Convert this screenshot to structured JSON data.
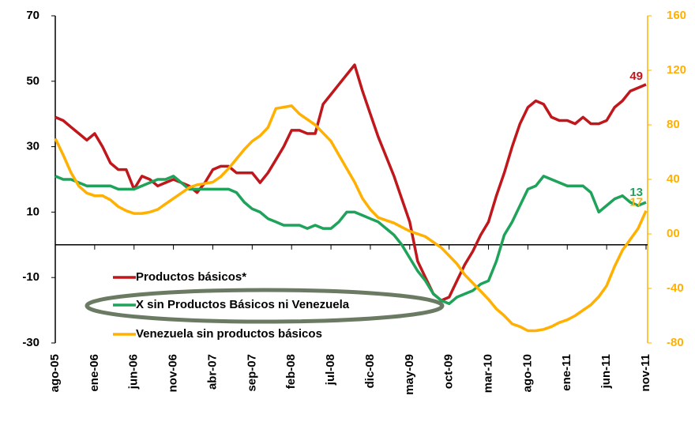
{
  "chart_data": {
    "type": "line",
    "categories": [
      "ago-05",
      null,
      null,
      null,
      null,
      "ene-06",
      null,
      null,
      null,
      null,
      "jun-06",
      null,
      null,
      null,
      null,
      "nov-06",
      null,
      null,
      null,
      null,
      "abr-07",
      null,
      null,
      null,
      null,
      "sep-07",
      null,
      null,
      null,
      null,
      "feb-08",
      null,
      null,
      null,
      null,
      "jul-08",
      null,
      null,
      null,
      null,
      "dic-08",
      null,
      null,
      null,
      null,
      "may-09",
      null,
      null,
      null,
      null,
      "oct-09",
      null,
      null,
      null,
      null,
      "mar-10",
      null,
      null,
      null,
      null,
      "ago-10",
      null,
      null,
      null,
      null,
      "ene-11",
      null,
      null,
      null,
      null,
      "jun-11",
      null,
      null,
      null,
      null,
      "nov-11"
    ],
    "ylim": [
      -30,
      70
    ],
    "yticks": [
      -30,
      -10,
      10,
      30,
      50,
      70
    ],
    "y2lim": [
      -80,
      160
    ],
    "y2ticks": [
      -80,
      -40,
      {
        "value": 0,
        "label": "00"
      },
      40,
      80,
      120,
      160
    ],
    "series": [
      {
        "name": "Productos básicos*",
        "color": "#c0171c",
        "values": [
          39,
          38,
          36,
          34,
          32,
          34,
          30,
          25,
          23,
          23,
          17,
          21,
          20,
          18,
          19,
          20,
          19,
          18,
          16,
          19,
          23,
          24,
          24,
          22,
          22,
          22,
          19,
          22,
          26,
          30,
          35,
          35,
          34,
          34,
          43,
          46,
          49,
          52,
          55,
          47,
          40,
          33,
          27,
          21,
          14,
          7,
          -5,
          -10,
          -15,
          -17,
          -16,
          -11,
          -6,
          -2,
          3,
          7,
          15,
          22,
          30,
          37,
          42,
          44,
          43,
          39,
          38,
          38,
          37,
          39,
          37,
          37,
          38,
          42,
          44,
          47,
          48,
          49
        ]
      },
      {
        "name": "X sin Productos Básicos ni Venezuela",
        "color": "#1fa35a",
        "values": [
          21,
          20,
          20,
          19,
          18,
          18,
          18,
          18,
          17,
          17,
          17,
          18,
          19,
          20,
          20,
          21,
          19,
          17,
          17,
          17,
          17,
          17,
          17,
          16,
          13,
          11,
          10,
          8,
          7,
          6,
          6,
          6,
          5,
          6,
          5,
          5,
          7,
          10,
          10,
          9,
          8,
          7,
          5,
          3,
          0,
          -4,
          -8,
          -11,
          -15,
          -17,
          -18,
          -16,
          -15,
          -14,
          -12,
          -11,
          -5,
          3,
          7,
          12,
          17,
          18,
          21,
          20,
          19,
          18,
          18,
          18,
          16,
          10,
          12,
          14,
          15,
          13,
          12,
          13
        ]
      },
      {
        "name": "Venezuela sin productos básicos",
        "color": "#ffb000",
        "axis": "y2",
        "values": [
          70,
          58,
          45,
          35,
          30,
          28,
          28,
          25,
          20,
          17,
          15,
          15,
          16,
          18,
          22,
          26,
          30,
          34,
          36,
          37,
          38,
          42,
          48,
          55,
          62,
          68,
          72,
          78,
          92,
          93,
          94,
          88,
          84,
          80,
          74,
          68,
          58,
          48,
          38,
          26,
          18,
          12,
          10,
          8,
          5,
          2,
          0,
          -2,
          -6,
          -10,
          -16,
          -22,
          -30,
          -36,
          -42,
          -48,
          -55,
          -60,
          -66,
          -68,
          -71,
          -71,
          -70,
          -68,
          -65,
          -63,
          -60,
          -56,
          -52,
          -46,
          -38,
          -24,
          -12,
          -4,
          4,
          17
        ]
      }
    ]
  }
}
